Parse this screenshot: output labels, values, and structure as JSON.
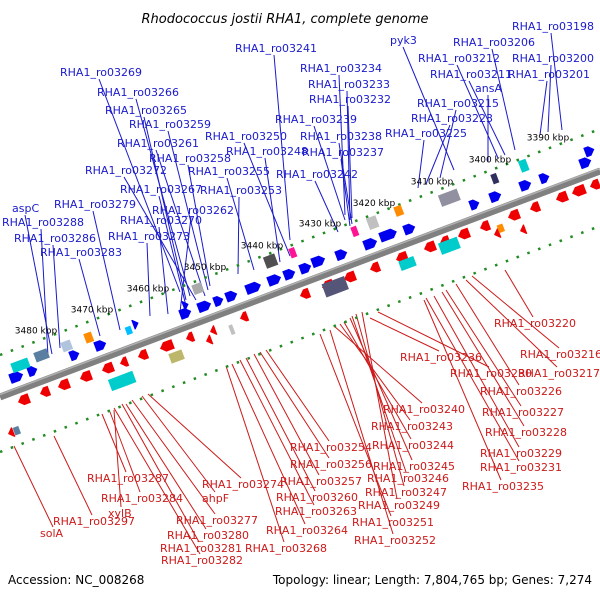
{
  "title": "Rhodococcus jostii RHA1, complete genome",
  "accession": "Accession: NC_008268",
  "topology": "Topology: linear; Length: 7,804,765 bp; Genes: 7,274",
  "colors": {
    "top_label": "#1a1acc",
    "bottom_label": "#cc1a1a",
    "forward": "#0000ee",
    "reverse": "#ee0000",
    "axis": "#808080",
    "tick": "#228b22"
  },
  "ticks": [
    "3390 kbp",
    "3400 kbp",
    "3410 kbp",
    "3420 kbp",
    "3430 kbp",
    "3440 kbp",
    "3450 kbp",
    "3460 kbp",
    "3470 kbp",
    "3480 kbp"
  ],
  "top_labels": [
    {
      "text": "RHA1_ro03198",
      "pos": 0.97
    },
    {
      "text": "RHA1_ro03200",
      "pos": 0.945
    },
    {
      "text": "RHA1_ro03201",
      "pos": 0.925
    },
    {
      "text": "RHA1_ro03206",
      "pos": 0.885
    },
    {
      "text": "RHA1_ro03211",
      "pos": 0.865
    },
    {
      "text": "RHA1_ro03212",
      "pos": 0.85
    },
    {
      "text": "ansA",
      "pos": 0.84
    },
    {
      "text": "pyk3",
      "pos": 0.83
    },
    {
      "text": "RHA1_ro03215",
      "pos": 0.805
    },
    {
      "text": "RHA1_ro03223",
      "pos": 0.775
    },
    {
      "text": "RHA1_ro03225",
      "pos": 0.76
    },
    {
      "text": "RHA1_ro03241",
      "pos": 0.69
    },
    {
      "text": "RHA1_ro03234",
      "pos": 0.68
    },
    {
      "text": "RHA1_ro03233",
      "pos": 0.67
    },
    {
      "text": "RHA1_ro03232",
      "pos": 0.66
    },
    {
      "text": "RHA1_ro03239",
      "pos": 0.645
    },
    {
      "text": "RHA1_ro03238",
      "pos": 0.635
    },
    {
      "text": "RHA1_ro03237",
      "pos": 0.62
    },
    {
      "text": "RHA1_ro03242",
      "pos": 0.605
    },
    {
      "text": "RHA1_ro03250",
      "pos": 0.54
    },
    {
      "text": "RHA1_ro03248",
      "pos": 0.53
    },
    {
      "text": "RHA1_ro03255",
      "pos": 0.505
    },
    {
      "text": "RHA1_ro03253",
      "pos": 0.49
    },
    {
      "text": "RHA1_ro03269",
      "pos": 0.47
    },
    {
      "text": "RHA1_ro03266",
      "pos": 0.46
    },
    {
      "text": "RHA1_ro03265",
      "pos": 0.45
    },
    {
      "text": "RHA1_ro03259",
      "pos": 0.44
    },
    {
      "text": "RHA1_ro03261",
      "pos": 0.43
    },
    {
      "text": "RHA1_ro03258",
      "pos": 0.42
    },
    {
      "text": "RHA1_ro03272",
      "pos": 0.41
    },
    {
      "text": "RHA1_ro03267",
      "pos": 0.4
    },
    {
      "text": "RHA1_ro03262",
      "pos": 0.39
    },
    {
      "text": "RHA1_ro03270",
      "pos": 0.37
    },
    {
      "text": "RHA1_ro03273",
      "pos": 0.355
    },
    {
      "text": "RHA1_ro03279",
      "pos": 0.3
    },
    {
      "text": "aspC",
      "pos": 0.19
    },
    {
      "text": "RHA1_ro03288",
      "pos": 0.18
    },
    {
      "text": "RHA1_ro03286",
      "pos": 0.17
    },
    {
      "text": "RHA1_ro03283",
      "pos": 0.16
    }
  ],
  "bottom_labels": [
    {
      "text": "RHA1_ro03220",
      "pos": 0.86
    },
    {
      "text": "RHA1_ro03216",
      "pos": 0.92
    },
    {
      "text": "RHA1_ro03217",
      "pos": 0.91
    },
    {
      "text": "RHA1_ro03230",
      "pos": 0.79
    },
    {
      "text": "RHA1_ro03236",
      "pos": 0.755
    },
    {
      "text": "RHA1_ro03226",
      "pos": 0.8
    },
    {
      "text": "RHA1_ro03227",
      "pos": 0.81
    },
    {
      "text": "RHA1_ro03228",
      "pos": 0.82
    },
    {
      "text": "RHA1_ro03229",
      "pos": 0.83
    },
    {
      "text": "RHA1_ro03231",
      "pos": 0.785
    },
    {
      "text": "RHA1_ro03235",
      "pos": 0.77
    },
    {
      "text": "RHA1_ro03240",
      "pos": 0.715
    },
    {
      "text": "RHA1_ro03243",
      "pos": 0.705
    },
    {
      "text": "RHA1_ro03244",
      "pos": 0.695
    },
    {
      "text": "RHA1_ro03245",
      "pos": 0.685
    },
    {
      "text": "RHA1_ro03246",
      "pos": 0.675
    },
    {
      "text": "RHA1_ro03247",
      "pos": 0.665
    },
    {
      "text": "RHA1_ro03249",
      "pos": 0.655
    },
    {
      "text": "RHA1_ro03251",
      "pos": 0.64
    },
    {
      "text": "RHA1_ro03252",
      "pos": 0.63
    },
    {
      "text": "RHA1_ro03254",
      "pos": 0.6
    },
    {
      "text": "RHA1_ro03256",
      "pos": 0.59
    },
    {
      "text": "RHA1_ro03257",
      "pos": 0.58
    },
    {
      "text": "RHA1_ro03260",
      "pos": 0.57
    },
    {
      "text": "RHA1_ro03263",
      "pos": 0.56
    },
    {
      "text": "RHA1_ro03264",
      "pos": 0.55
    },
    {
      "text": "RHA1_ro03268",
      "pos": 0.535
    },
    {
      "text": "RHA1_ro03274",
      "pos": 0.4
    },
    {
      "text": "ahpF",
      "pos": 0.385
    },
    {
      "text": "RHA1_ro03277",
      "pos": 0.375
    },
    {
      "text": "RHA1_ro03280",
      "pos": 0.365
    },
    {
      "text": "RHA1_ro03281",
      "pos": 0.355
    },
    {
      "text": "RHA1_ro03282",
      "pos": 0.345
    },
    {
      "text": "xylB",
      "pos": 0.3
    },
    {
      "text": "RHA1_ro03284",
      "pos": 0.29
    },
    {
      "text": "RHA1_ro03287",
      "pos": 0.28
    },
    {
      "text": "RHA1_ro03297",
      "pos": 0.14
    },
    {
      "text": "solA",
      "pos": 0.05
    }
  ]
}
